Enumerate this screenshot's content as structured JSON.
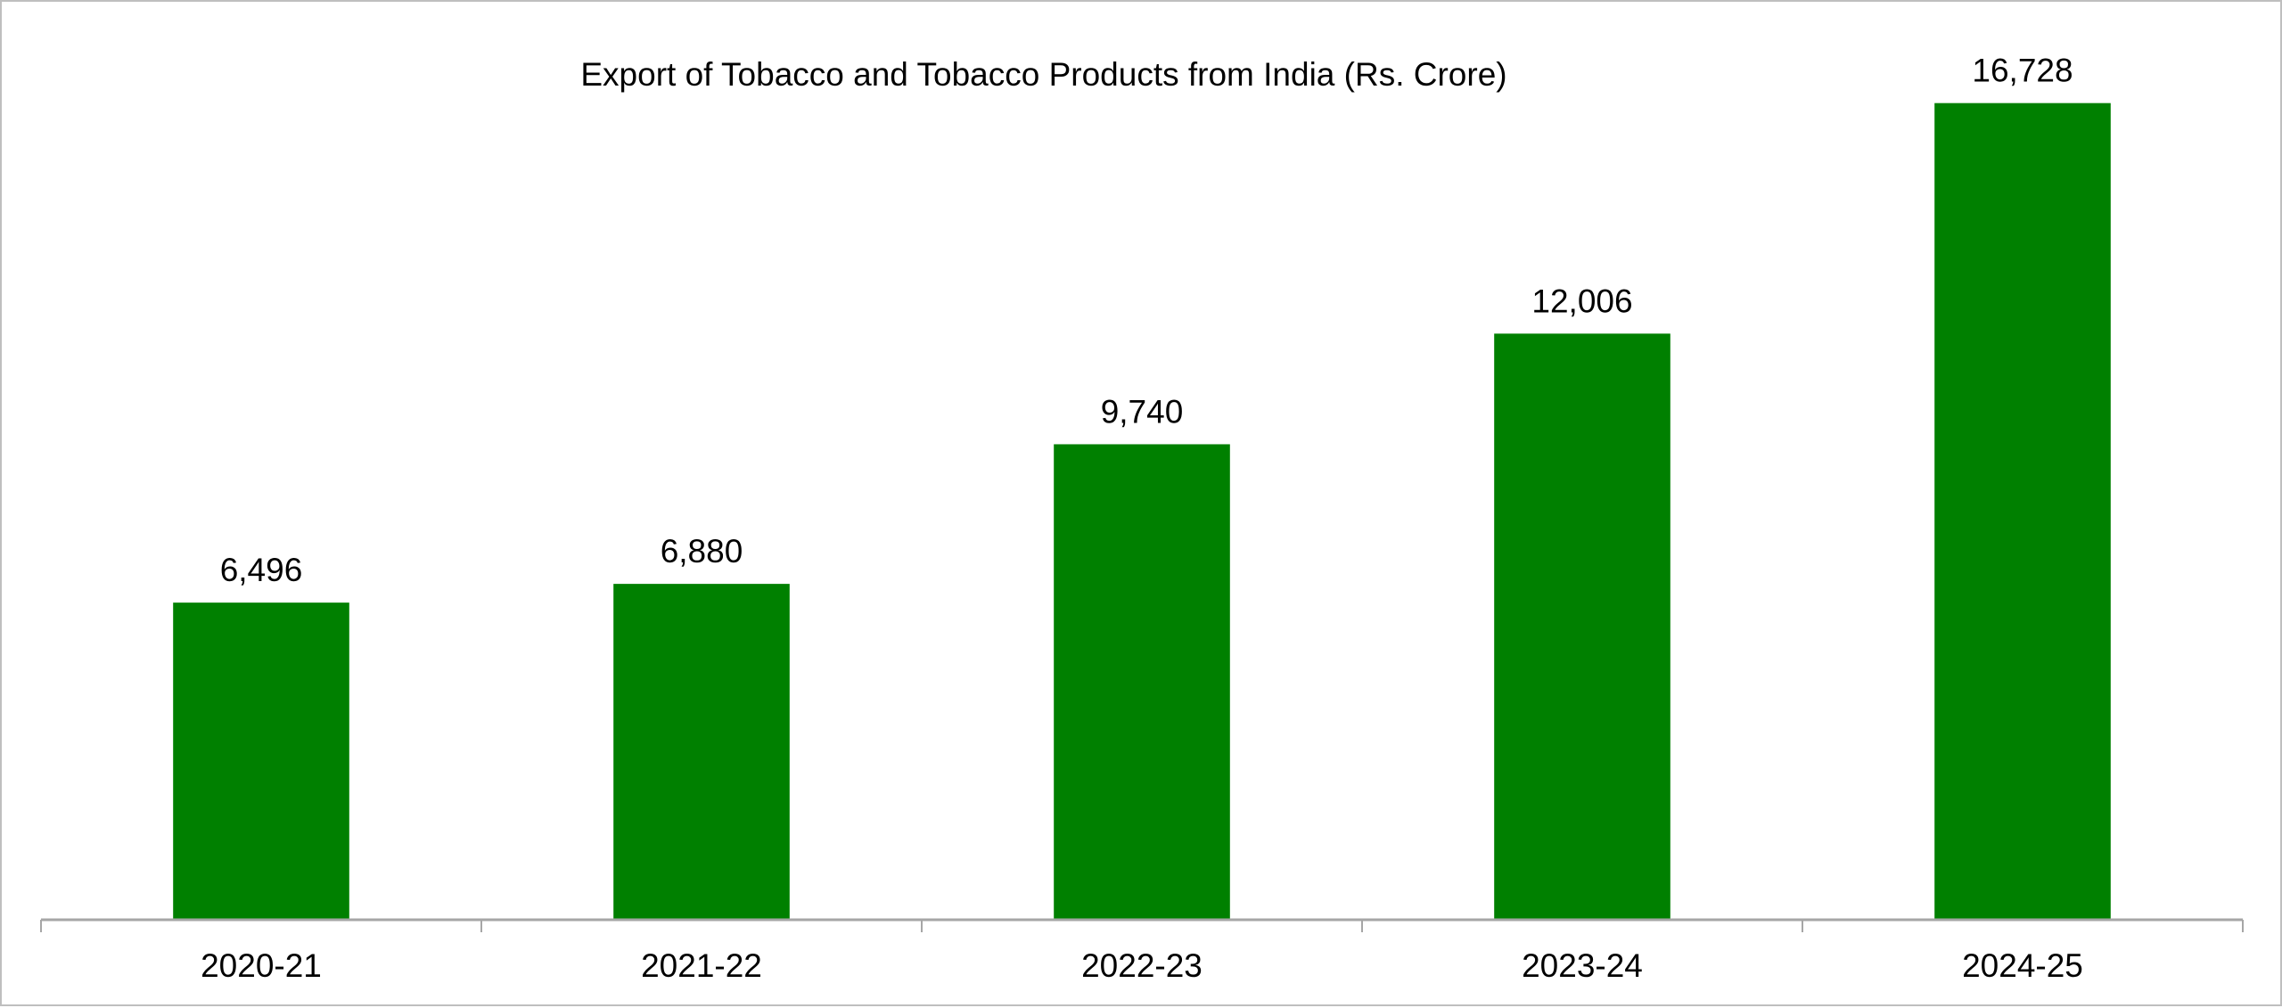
{
  "chart_data": {
    "type": "bar",
    "title": "Export of Tobacco and Tobacco Products from India (Rs. Crore)",
    "categories": [
      "2020-21",
      "2021-22",
      "2022-23",
      "2023-24",
      "2024-25"
    ],
    "values": [
      6496,
      6880,
      9740,
      12006,
      16728
    ],
    "data_labels": [
      "6,496",
      "6,880",
      "9,740",
      "12,006",
      "16,728"
    ],
    "xlabel": "",
    "ylabel": "",
    "ylim": [
      0,
      18000
    ],
    "grid": false,
    "legend": "none",
    "bar_color": "#008000",
    "axis_color": "#a6a6a6"
  }
}
